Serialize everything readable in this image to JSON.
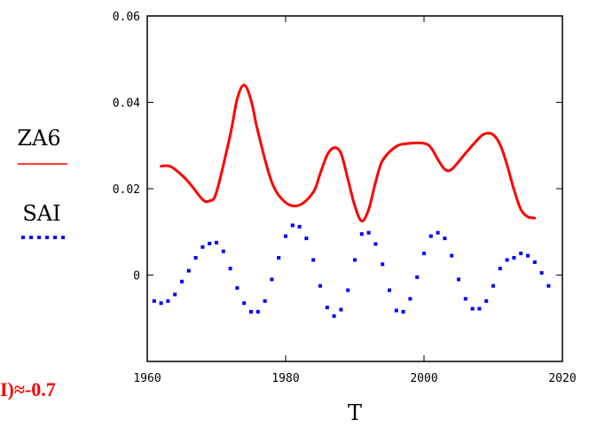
{
  "chart_data": {
    "type": "line",
    "xlabel": "T",
    "ylabel": "",
    "xlim": [
      1960,
      2020
    ],
    "ylim": [
      -0.02,
      0.06
    ],
    "xticks": [
      1960,
      1980,
      2000,
      2020
    ],
    "xtick_labels": [
      "1960",
      "1980",
      "2000",
      "2020"
    ],
    "yticks": [
      0,
      0.02,
      0.04,
      0.06
    ],
    "ytick_labels": [
      "0",
      "0.02",
      "0.04",
      "0.06"
    ],
    "grid": false,
    "legend_position": "left",
    "annotation": "I)≈-0.7",
    "series": [
      {
        "name": "ZA6",
        "style": "solid",
        "color": "#ff0000",
        "x": [
          1962,
          1963,
          1964,
          1966,
          1968,
          1969,
          1970,
          1972,
          1973,
          1974,
          1975,
          1976,
          1978,
          1980,
          1982,
          1984,
          1985,
          1986,
          1987,
          1988,
          1989,
          1990,
          1991,
          1992,
          1993,
          1994,
          1996,
          1998,
          2000,
          2001,
          2002,
          2003,
          2004,
          2006,
          2008,
          2009,
          2010,
          2011,
          2012,
          2013,
          2014,
          2015,
          2016
        ],
        "y": [
          0.0252,
          0.0253,
          0.0245,
          0.0215,
          0.0175,
          0.0172,
          0.0192,
          0.0325,
          0.0408,
          0.044,
          0.0405,
          0.0332,
          0.0215,
          0.0168,
          0.0162,
          0.0192,
          0.0235,
          0.0278,
          0.0295,
          0.0282,
          0.0222,
          0.016,
          0.0125,
          0.0152,
          0.0215,
          0.0265,
          0.0298,
          0.0305,
          0.0305,
          0.0295,
          0.0268,
          0.0245,
          0.0245,
          0.0282,
          0.0318,
          0.0328,
          0.0325,
          0.0302,
          0.0255,
          0.0198,
          0.0152,
          0.0135,
          0.0132
        ]
      },
      {
        "name": "SAI",
        "style": "dotted",
        "color": "#0000ff",
        "x": [
          1961,
          1962,
          1963,
          1964,
          1965,
          1966,
          1967,
          1968,
          1969,
          1970,
          1971,
          1972,
          1973,
          1974,
          1975,
          1976,
          1977,
          1978,
          1979,
          1980,
          1981,
          1982,
          1983,
          1984,
          1985,
          1986,
          1987,
          1988,
          1989,
          1990,
          1991,
          1992,
          1993,
          1994,
          1995,
          1996,
          1997,
          1998,
          1999,
          2000,
          2001,
          2002,
          2003,
          2004,
          2005,
          2006,
          2007,
          2008,
          2009,
          2010,
          2011,
          2012,
          2013,
          2014,
          2015,
          2016,
          2017,
          2018
        ],
        "y": [
          -0.006,
          -0.0065,
          -0.006,
          -0.0045,
          -0.0015,
          0.001,
          0.004,
          0.0065,
          0.0073,
          0.0075,
          0.0055,
          0.0015,
          -0.003,
          -0.0065,
          -0.0085,
          -0.0085,
          -0.006,
          -0.001,
          0.004,
          0.009,
          0.0115,
          0.0112,
          0.0085,
          0.0035,
          -0.0025,
          -0.0075,
          -0.0095,
          -0.008,
          -0.0035,
          0.0035,
          0.0095,
          0.0098,
          0.0072,
          0.0025,
          -0.0035,
          -0.0082,
          -0.0085,
          -0.0055,
          -0.0005,
          0.005,
          0.009,
          0.0098,
          0.0085,
          0.0045,
          -0.001,
          -0.0055,
          -0.0078,
          -0.0078,
          -0.006,
          -0.0025,
          0.0015,
          0.0035,
          0.004,
          0.005,
          0.0045,
          0.003,
          0.0005,
          -0.0025
        ]
      }
    ]
  }
}
